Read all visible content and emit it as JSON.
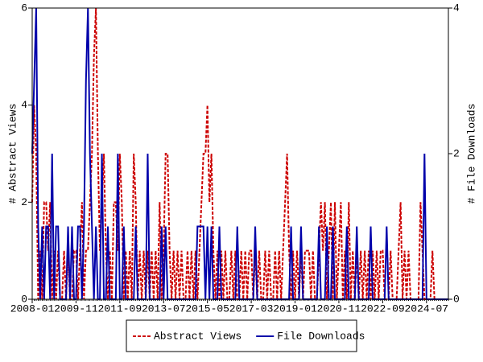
{
  "chart_data": {
    "type": "line",
    "ylabel": "# Abstract Views",
    "y2label": "# File Downloads",
    "categories": [
      "2008-01",
      null,
      null,
      null,
      null,
      null,
      null,
      null,
      null,
      null,
      null,
      null,
      null,
      null,
      null,
      null,
      null,
      null,
      null,
      null,
      null,
      null,
      "2009-11",
      null,
      null,
      null,
      null,
      null,
      null,
      null,
      null,
      null,
      null,
      null,
      null,
      null,
      null,
      null,
      null,
      null,
      null,
      null,
      null,
      null,
      "2011-09",
      null,
      null,
      null,
      null,
      null,
      null,
      null,
      null,
      null,
      null,
      null,
      null,
      null,
      null,
      null,
      null,
      null,
      null,
      null,
      null,
      null,
      "2013-07",
      null,
      null,
      null,
      null,
      null,
      null,
      null,
      null,
      null,
      null,
      null,
      null,
      null,
      null,
      null,
      null,
      null,
      null,
      null,
      null,
      null,
      "2015-05",
      null,
      null,
      null,
      null,
      null,
      null,
      null,
      null,
      null,
      null,
      null,
      null,
      null,
      null,
      null,
      null,
      null,
      null,
      null,
      null,
      null,
      "2017-03",
      null,
      null,
      null,
      null,
      null,
      null,
      null,
      null,
      null,
      null,
      null,
      null,
      null,
      null,
      null,
      null,
      null,
      null,
      null,
      null,
      null,
      "2019-01",
      null,
      null,
      null,
      null,
      null,
      null,
      null,
      null,
      null,
      null,
      null,
      null,
      null,
      null,
      null,
      null,
      null,
      null,
      null,
      null,
      null,
      "2020-11",
      null,
      null,
      null,
      null,
      null,
      null,
      null,
      null,
      null,
      null,
      null,
      null,
      null,
      null,
      null,
      null,
      null,
      null,
      null,
      null,
      null,
      "2022-09",
      null,
      null,
      null,
      null,
      null,
      null,
      null,
      null,
      null,
      null,
      null,
      null,
      null,
      null,
      null,
      null,
      null,
      null,
      null,
      null,
      null,
      "2024-07",
      null,
      null,
      null,
      null,
      null,
      null,
      null,
      null,
      null,
      null,
      null
    ],
    "series": [
      {
        "name": "Abstract Views",
        "color": "#cc0000",
        "dash": true,
        "axis": "y",
        "values": [
          2,
          4,
          3,
          0,
          1,
          0,
          2,
          2,
          1,
          2,
          0,
          1,
          0,
          1,
          0,
          0,
          1,
          0,
          1,
          0,
          0,
          1,
          1,
          0,
          1,
          2,
          0,
          1,
          1,
          2,
          3,
          5,
          6,
          3,
          1,
          2,
          3,
          1,
          0,
          1,
          0,
          2,
          2,
          1,
          3,
          2,
          0,
          1,
          0,
          1,
          0,
          3,
          2,
          0,
          1,
          0,
          1,
          0,
          1,
          0,
          1,
          0,
          1,
          0,
          2,
          0,
          1,
          3,
          3,
          1,
          0,
          1,
          0,
          1,
          0,
          1,
          0,
          0,
          1,
          0,
          1,
          0,
          1,
          0,
          1,
          2,
          3,
          3,
          4,
          2,
          3,
          1,
          0,
          1,
          0,
          1,
          0,
          1,
          0,
          0,
          1,
          0,
          1,
          0,
          0,
          1,
          0,
          1,
          0,
          1,
          1,
          0,
          1,
          0,
          1,
          0,
          0,
          1,
          0,
          1,
          0,
          0,
          1,
          0,
          1,
          0,
          1,
          2,
          3,
          1,
          0,
          1,
          0,
          1,
          0,
          1,
          0,
          1,
          1,
          1,
          0,
          1,
          0,
          0,
          1,
          2,
          1,
          2,
          0,
          1,
          2,
          0,
          2,
          0,
          1,
          2,
          0,
          1,
          0,
          2,
          0,
          1,
          0,
          1,
          0,
          1,
          0,
          1,
          0,
          1,
          0,
          1,
          0,
          1,
          0,
          1,
          1,
          0,
          0,
          0,
          1,
          0,
          0,
          0,
          1,
          2,
          0,
          1,
          0,
          1,
          0,
          0,
          0,
          0,
          0,
          2,
          1,
          0,
          0,
          0,
          0,
          1,
          0,
          0,
          0,
          0,
          0,
          0,
          0,
          0
        ]
      },
      {
        "name": "File Downloads",
        "color": "#0000aa",
        "dash": false,
        "axis": "y2",
        "values": [
          2,
          3,
          4,
          1,
          0,
          1,
          0,
          1,
          1,
          0,
          2,
          0,
          1,
          1,
          0,
          0,
          0,
          0,
          1,
          0,
          1,
          0,
          0,
          1,
          1,
          0,
          1,
          3,
          4,
          2,
          1,
          0,
          1,
          0,
          0,
          2,
          0,
          0,
          1,
          0,
          0,
          0,
          0,
          2,
          0,
          0,
          1,
          0,
          0,
          0,
          0,
          0,
          1,
          0,
          0,
          0,
          0,
          0,
          2,
          0,
          0,
          0,
          0,
          0,
          0,
          1,
          0,
          1,
          0,
          0,
          0,
          0,
          0,
          0,
          0,
          0,
          0,
          0,
          0,
          0,
          0,
          0,
          0,
          1,
          1,
          1,
          1,
          0,
          1,
          0,
          1,
          0,
          0,
          0,
          1,
          0,
          0,
          0,
          0,
          0,
          0,
          0,
          0,
          1,
          0,
          0,
          0,
          0,
          0,
          0,
          0,
          0,
          1,
          0,
          0,
          0,
          0,
          0,
          0,
          0,
          0,
          0,
          0,
          0,
          0,
          0,
          0,
          0,
          0,
          0,
          1,
          0,
          0,
          0,
          0,
          1,
          0,
          0,
          0,
          0,
          0,
          0,
          0,
          0,
          1,
          0,
          0,
          0,
          1,
          0,
          0,
          1,
          0,
          0,
          0,
          0,
          0,
          0,
          1,
          0,
          0,
          0,
          0,
          1,
          0,
          0,
          0,
          0,
          0,
          0,
          1,
          0,
          0,
          0,
          0,
          0,
          0,
          0,
          1,
          0,
          0,
          0,
          0,
          0,
          0,
          0,
          0,
          0,
          0,
          0,
          0,
          0,
          0,
          0,
          0,
          0,
          0,
          2,
          0,
          0,
          0,
          0,
          0,
          0,
          0,
          0,
          0,
          0,
          0,
          0
        ]
      }
    ],
    "ylim": [
      0,
      6
    ],
    "yticks": [
      0,
      2,
      4,
      6
    ],
    "y2lim": [
      0,
      4
    ],
    "y2ticks": [
      0,
      2,
      4
    ],
    "legend": "bottom"
  }
}
